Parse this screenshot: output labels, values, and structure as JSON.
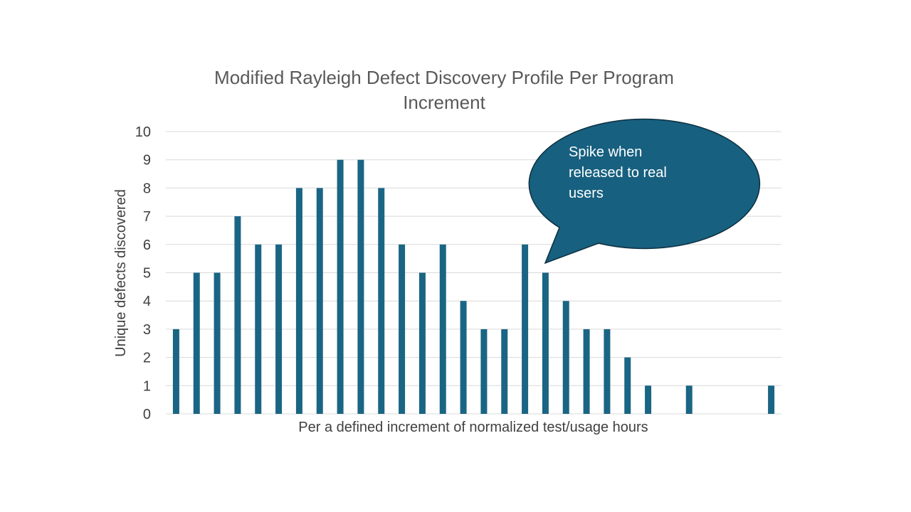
{
  "chart_data": {
    "type": "bar",
    "title_lines": [
      "Modified Rayleigh Defect Discovery Profile Per Program",
      "Increment"
    ],
    "xlabel": "Per a defined increment of normalized test/usage hours",
    "ylabel": "Unique defects discovered",
    "ylim": [
      0,
      10
    ],
    "yticks": [
      "0",
      "1",
      "2",
      "3",
      "4",
      "5",
      "6",
      "7",
      "8",
      "9",
      "10"
    ],
    "grid": true,
    "values": [
      3,
      5,
      5,
      7,
      6,
      6,
      8,
      8,
      9,
      9,
      8,
      6,
      5,
      6,
      4,
      3,
      3,
      6,
      5,
      4,
      3,
      3,
      2,
      1,
      0,
      1,
      0,
      0,
      0,
      1
    ],
    "bar_color": "#1a6584",
    "gridline_color": "#d9d9d9",
    "annotation": {
      "lines": [
        "Spike when",
        "released to real",
        "users"
      ],
      "fill": "#17607f",
      "stroke": "#0e2f40",
      "points_to_index": 18
    }
  }
}
